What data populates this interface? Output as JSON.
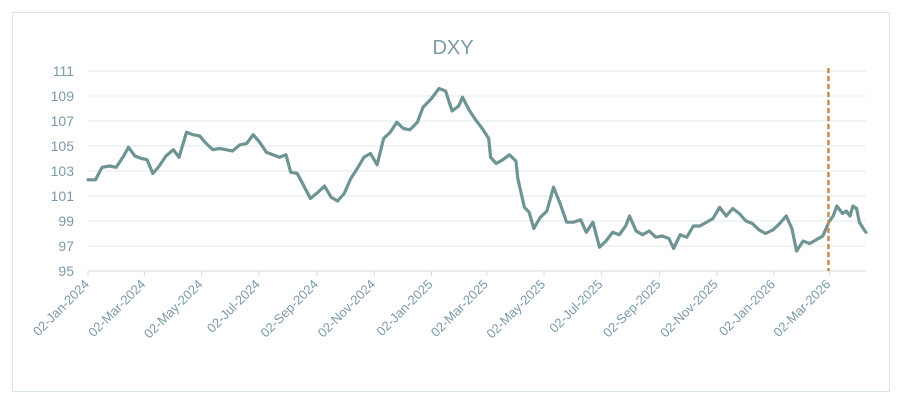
{
  "chart_data": {
    "type": "line",
    "title": "DXY",
    "xlabel": "",
    "ylabel": "",
    "ylim": [
      95,
      111
    ],
    "yticks": [
      95,
      97,
      99,
      101,
      103,
      105,
      107,
      109,
      111
    ],
    "xlim": [
      "2024-01-02",
      "2026-04-10"
    ],
    "xticks": [
      "02-Jan-2024",
      "02-Mar-2024",
      "02-May-2024",
      "02-Jul-2024",
      "02-Sep-2024",
      "02-Nov-2024",
      "02-Jan-2025",
      "02-Mar-2025",
      "02-May-2025",
      "02-Jul-2025",
      "02-Sep-2025",
      "02-Nov-2025",
      "02-Jan-2026",
      "02-Mar-2026"
    ],
    "grid": true,
    "legend": "none",
    "line_color": "#6e9494",
    "marker_color": "#c98a4b",
    "vertical_marker_date": "2026-03-01",
    "series": [
      {
        "points": [
          [
            "2024-01-02",
            102.3
          ],
          [
            "2024-01-10",
            102.3
          ],
          [
            "2024-01-17",
            103.3
          ],
          [
            "2024-01-25",
            103.4
          ],
          [
            "2024-02-01",
            103.3
          ],
          [
            "2024-02-09",
            104.2
          ],
          [
            "2024-02-14",
            104.9
          ],
          [
            "2024-02-21",
            104.2
          ],
          [
            "2024-02-28",
            104.0
          ],
          [
            "2024-03-05",
            103.9
          ],
          [
            "2024-03-11",
            102.8
          ],
          [
            "2024-03-18",
            103.4
          ],
          [
            "2024-03-25",
            104.2
          ],
          [
            "2024-04-02",
            104.7
          ],
          [
            "2024-04-08",
            104.1
          ],
          [
            "2024-04-16",
            106.1
          ],
          [
            "2024-04-23",
            105.9
          ],
          [
            "2024-04-30",
            105.8
          ],
          [
            "2024-05-07",
            105.2
          ],
          [
            "2024-05-14",
            104.7
          ],
          [
            "2024-05-21",
            104.8
          ],
          [
            "2024-05-28",
            104.7
          ],
          [
            "2024-06-04",
            104.6
          ],
          [
            "2024-06-12",
            105.1
          ],
          [
            "2024-06-19",
            105.2
          ],
          [
            "2024-06-26",
            105.9
          ],
          [
            "2024-07-03",
            105.3
          ],
          [
            "2024-07-10",
            104.5
          ],
          [
            "2024-07-17",
            104.3
          ],
          [
            "2024-07-24",
            104.1
          ],
          [
            "2024-07-31",
            104.3
          ],
          [
            "2024-08-05",
            102.9
          ],
          [
            "2024-08-12",
            102.8
          ],
          [
            "2024-08-19",
            101.8
          ],
          [
            "2024-08-26",
            100.8
          ],
          [
            "2024-09-03",
            101.3
          ],
          [
            "2024-09-10",
            101.8
          ],
          [
            "2024-09-17",
            100.9
          ],
          [
            "2024-09-24",
            100.6
          ],
          [
            "2024-10-01",
            101.2
          ],
          [
            "2024-10-08",
            102.4
          ],
          [
            "2024-10-15",
            103.2
          ],
          [
            "2024-10-22",
            104.1
          ],
          [
            "2024-10-29",
            104.4
          ],
          [
            "2024-11-05",
            103.5
          ],
          [
            "2024-11-12",
            105.6
          ],
          [
            "2024-11-19",
            106.1
          ],
          [
            "2024-11-26",
            106.9
          ],
          [
            "2024-12-03",
            106.4
          ],
          [
            "2024-12-10",
            106.3
          ],
          [
            "2024-12-18",
            106.9
          ],
          [
            "2024-12-24",
            108.1
          ],
          [
            "2025-01-02",
            108.8
          ],
          [
            "2025-01-10",
            109.6
          ],
          [
            "2025-01-17",
            109.4
          ],
          [
            "2025-01-24",
            107.8
          ],
          [
            "2025-01-31",
            108.2
          ],
          [
            "2025-02-04",
            108.9
          ],
          [
            "2025-02-11",
            107.9
          ],
          [
            "2025-02-18",
            107.1
          ],
          [
            "2025-02-25",
            106.4
          ],
          [
            "2025-03-04",
            105.6
          ],
          [
            "2025-03-06",
            104.1
          ],
          [
            "2025-03-12",
            103.6
          ],
          [
            "2025-03-19",
            103.9
          ],
          [
            "2025-03-26",
            104.3
          ],
          [
            "2025-04-02",
            103.8
          ],
          [
            "2025-04-04",
            102.4
          ],
          [
            "2025-04-11",
            100.1
          ],
          [
            "2025-04-16",
            99.7
          ],
          [
            "2025-04-21",
            98.4
          ],
          [
            "2025-04-28",
            99.3
          ],
          [
            "2025-05-05",
            99.8
          ],
          [
            "2025-05-12",
            101.7
          ],
          [
            "2025-05-19",
            100.4
          ],
          [
            "2025-05-26",
            98.9
          ],
          [
            "2025-06-02",
            98.9
          ],
          [
            "2025-06-10",
            99.1
          ],
          [
            "2025-06-16",
            98.1
          ],
          [
            "2025-06-23",
            98.9
          ],
          [
            "2025-06-30",
            96.9
          ],
          [
            "2025-07-07",
            97.4
          ],
          [
            "2025-07-14",
            98.1
          ],
          [
            "2025-07-21",
            97.9
          ],
          [
            "2025-07-28",
            98.6
          ],
          [
            "2025-08-01",
            99.4
          ],
          [
            "2025-08-08",
            98.2
          ],
          [
            "2025-08-15",
            97.9
          ],
          [
            "2025-08-22",
            98.2
          ],
          [
            "2025-08-29",
            97.7
          ],
          [
            "2025-09-05",
            97.8
          ],
          [
            "2025-09-12",
            97.6
          ],
          [
            "2025-09-17",
            96.8
          ],
          [
            "2025-09-24",
            97.9
          ],
          [
            "2025-10-01",
            97.7
          ],
          [
            "2025-10-08",
            98.6
          ],
          [
            "2025-10-15",
            98.6
          ],
          [
            "2025-10-22",
            98.9
          ],
          [
            "2025-10-29",
            99.2
          ],
          [
            "2025-11-05",
            100.1
          ],
          [
            "2025-11-12",
            99.4
          ],
          [
            "2025-11-19",
            100.0
          ],
          [
            "2025-11-26",
            99.6
          ],
          [
            "2025-12-03",
            99.0
          ],
          [
            "2025-12-10",
            98.8
          ],
          [
            "2025-12-17",
            98.3
          ],
          [
            "2025-12-24",
            98.0
          ],
          [
            "2026-01-01",
            98.3
          ],
          [
            "2026-01-08",
            98.8
          ],
          [
            "2026-01-15",
            99.4
          ],
          [
            "2026-01-21",
            98.4
          ],
          [
            "2026-01-26",
            96.6
          ],
          [
            "2026-02-02",
            97.4
          ],
          [
            "2026-02-09",
            97.2
          ],
          [
            "2026-02-16",
            97.5
          ],
          [
            "2026-02-23",
            97.8
          ],
          [
            "2026-03-02",
            99.0
          ],
          [
            "2026-03-06",
            99.4
          ],
          [
            "2026-03-10",
            100.2
          ],
          [
            "2026-03-16",
            99.6
          ],
          [
            "2026-03-20",
            99.8
          ],
          [
            "2026-03-24",
            99.4
          ],
          [
            "2026-03-27",
            100.2
          ],
          [
            "2026-03-31",
            100.0
          ],
          [
            "2026-04-03",
            98.9
          ],
          [
            "2026-04-08",
            98.3
          ],
          [
            "2026-04-10",
            98.1
          ]
        ]
      }
    ]
  }
}
